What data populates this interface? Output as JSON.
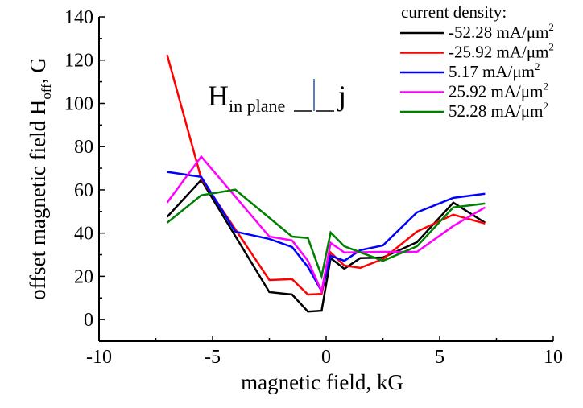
{
  "chart_data": {
    "type": "line",
    "title": "",
    "xlabel": "magnetic field, kG",
    "ylabel": {
      "main": "offset magnetic field H",
      "sub": "off",
      "suffix": ", G"
    },
    "xlim": [
      -10,
      10
    ],
    "ylim": [
      -10,
      140
    ],
    "xticks": [
      -10,
      -5,
      0,
      5,
      10
    ],
    "yticks": [
      0,
      20,
      40,
      60,
      80,
      100,
      120,
      140
    ],
    "xtick_labels": [
      "-10",
      "-5",
      "0",
      "5",
      "10"
    ],
    "ytick_labels": [
      "0",
      "20",
      "40",
      "60",
      "80",
      "100",
      "120",
      "140"
    ],
    "grid": false,
    "legend": {
      "title": "current density:",
      "placement": "top-right",
      "unit_base": "mA/μm",
      "unit_sup": "2"
    },
    "annotation": {
      "main": "H",
      "sub": "in plane",
      "tail": "—|— j"
    },
    "series": [
      {
        "name": "-52.28 mA/μm2",
        "label": "-52.28",
        "color": "#000000",
        "x": [
          -7,
          -5.5,
          -2.5,
          -1.5,
          -0.8,
          -0.2,
          0.2,
          0.8,
          1.5,
          2.5,
          4,
          5.6,
          7
        ],
        "y": [
          47.5,
          64.6,
          12.7,
          11.6,
          3.7,
          4.1,
          28.4,
          23.5,
          28.4,
          28.7,
          35.8,
          54.1,
          44.8
        ]
      },
      {
        "name": "-25.92 mA/μm2",
        "label": "-25.92",
        "color": "#ff0000",
        "x": [
          -7,
          -5.5,
          -2.5,
          -1.5,
          -0.8,
          -0.2,
          0.2,
          0.8,
          1.5,
          2.5,
          4,
          5.6,
          7
        ],
        "y": [
          122.4,
          65.3,
          18.3,
          18.7,
          11.6,
          11.9,
          31.0,
          25.0,
          23.9,
          28.0,
          40.7,
          48.5,
          44.4
        ]
      },
      {
        "name": "5.17 mA/μm2",
        "label": "5.17",
        "color": "#0000ff",
        "x": [
          -7,
          -5.5,
          -4,
          -2.5,
          -1.5,
          -0.8,
          -0.2,
          0.2,
          0.8,
          1.5,
          2.5,
          4,
          5.6,
          7
        ],
        "y": [
          68.3,
          66.0,
          40.7,
          37.3,
          33.6,
          24.3,
          13.1,
          29.5,
          27.2,
          32.1,
          34.3,
          49.6,
          56.3,
          58.2
        ]
      },
      {
        "name": "25.92 mA/μm2",
        "label": "25.92",
        "color": "#ff00ff",
        "x": [
          -7,
          -5.5,
          -2.5,
          -1.5,
          -0.8,
          -0.2,
          0.2,
          0.8,
          2.5,
          4,
          5.6,
          7
        ],
        "y": [
          54.1,
          75.4,
          38.4,
          36.6,
          27.2,
          13.1,
          35.5,
          31.0,
          31.3,
          31.3,
          43.3,
          51.9
        ]
      },
      {
        "name": "52.28 mA/μm2",
        "label": "52.28",
        "color": "#008000",
        "x": [
          -7,
          -5.5,
          -4,
          -1.5,
          -0.8,
          -0.2,
          0.2,
          0.8,
          2.5,
          4,
          5.6,
          7
        ],
        "y": [
          44.8,
          57.5,
          60.1,
          38.4,
          37.7,
          20.1,
          40.3,
          33.9,
          27.2,
          33.9,
          51.9,
          53.7
        ]
      }
    ]
  }
}
